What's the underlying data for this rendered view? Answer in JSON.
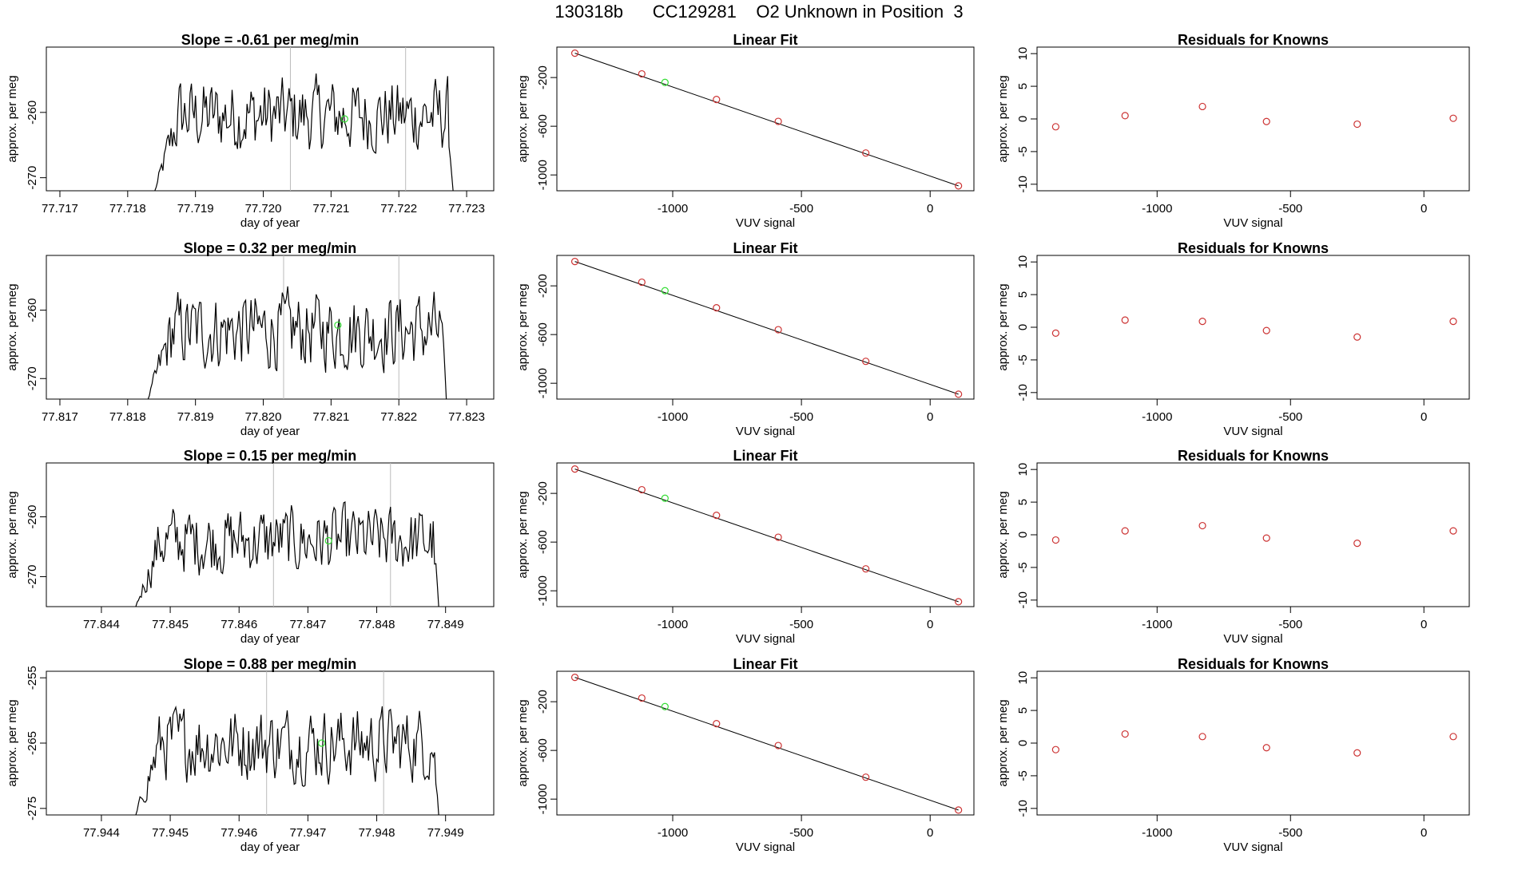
{
  "figure": {
    "title": "130318b      CC129281    O2 Unknown in Position  3"
  },
  "colors": {
    "trace": "#000000",
    "marker_known": "#cc3333",
    "marker_unknown": "#33dd33",
    "vline": "#bbbbbb"
  },
  "chart_data": [
    {
      "type": "line",
      "title": "Slope =  -0.61  per meg/min",
      "xlabel": "day of year",
      "ylabel": "approx. per meg",
      "xlim": [
        77.7168,
        77.7234
      ],
      "ylim": [
        -272,
        -250
      ],
      "xticks": [
        "77.717",
        "77.718",
        "77.719",
        "77.720",
        "77.721",
        "77.722",
        "77.723"
      ],
      "yticks": [
        "-260",
        "-270"
      ],
      "vlines": [
        77.7204,
        77.7221
      ],
      "trace_start": 77.7184,
      "trace_end": 77.7228,
      "trace_level": -260.5,
      "marker": {
        "x": 77.7212,
        "y": -261
      }
    },
    {
      "type": "scatter",
      "title": "Linear Fit",
      "xlabel": "VUV signal",
      "ylabel": "approx. per meg",
      "xlim": [
        -1450,
        170
      ],
      "ylim": [
        -1130,
        50
      ],
      "xticks": [
        "-1000",
        "-500",
        "0"
      ],
      "yticks": [
        "-200",
        "-600",
        "-1000"
      ],
      "points_x": [
        -1380,
        -1120,
        -830,
        -590,
        -250,
        110
      ],
      "points_y": [
        0,
        -170,
        -380,
        -560,
        -820,
        -1090
      ],
      "unknown": {
        "x": -1030,
        "y": -240
      },
      "fit": {
        "x": [
          -1380,
          110
        ],
        "y": [
          0,
          -1090
        ]
      }
    },
    {
      "type": "scatter",
      "title": "Residuals for Knowns",
      "xlabel": "VUV signal",
      "ylabel": "approx. per meg",
      "xlim": [
        -1450,
        170
      ],
      "ylim": [
        -11,
        11
      ],
      "xticks": [
        "-1000",
        "-500",
        "0"
      ],
      "yticks": [
        "10",
        "5",
        "0",
        "-5",
        "-10"
      ],
      "points_x": [
        -1380,
        -1120,
        -830,
        -590,
        -250,
        110
      ],
      "points_y": [
        -1.2,
        0.5,
        1.9,
        -0.4,
        -0.8,
        0.1
      ]
    },
    {
      "type": "line",
      "title": "Slope =  0.32  per meg/min",
      "xlabel": "day of year",
      "ylabel": "approx. per meg",
      "xlim": [
        77.8168,
        77.8234
      ],
      "ylim": [
        -273,
        -252
      ],
      "xticks": [
        "77.817",
        "77.818",
        "77.819",
        "77.820",
        "77.821",
        "77.822",
        "77.823"
      ],
      "yticks": [
        "-260",
        "-270"
      ],
      "vlines": [
        77.8203,
        77.822
      ],
      "trace_start": 77.8183,
      "trace_end": 77.8227,
      "trace_level": -263,
      "marker": {
        "x": 77.8211,
        "y": -262.2
      }
    },
    {
      "type": "scatter",
      "title": "Linear Fit",
      "xlabel": "VUV signal",
      "ylabel": "approx. per meg",
      "xlim": [
        -1450,
        170
      ],
      "ylim": [
        -1130,
        50
      ],
      "xticks": [
        "-1000",
        "-500",
        "0"
      ],
      "yticks": [
        "-200",
        "-600",
        "-1000"
      ],
      "points_x": [
        -1380,
        -1120,
        -830,
        -590,
        -250,
        110
      ],
      "points_y": [
        0,
        -170,
        -380,
        -560,
        -820,
        -1090
      ],
      "unknown": {
        "x": -1030,
        "y": -240
      },
      "fit": {
        "x": [
          -1380,
          110
        ],
        "y": [
          0,
          -1090
        ]
      }
    },
    {
      "type": "scatter",
      "title": "Residuals for Knowns",
      "xlabel": "VUV signal",
      "ylabel": "approx. per meg",
      "xlim": [
        -1450,
        170
      ],
      "ylim": [
        -11,
        11
      ],
      "xticks": [
        "-1000",
        "-500",
        "0"
      ],
      "yticks": [
        "10",
        "5",
        "0",
        "-5",
        "-10"
      ],
      "points_x": [
        -1380,
        -1120,
        -830,
        -590,
        -250,
        110
      ],
      "points_y": [
        -0.9,
        1.1,
        0.9,
        -0.5,
        -1.5,
        0.9
      ]
    },
    {
      "type": "line",
      "title": "Slope =  0.15  per meg/min",
      "xlabel": "day of year",
      "ylabel": "approx. per meg",
      "xlim": [
        77.8432,
        77.8497
      ],
      "ylim": [
        -275,
        -251
      ],
      "xticks": [
        "77.844",
        "77.845",
        "77.846",
        "77.847",
        "77.848",
        "77.849"
      ],
      "yticks": [
        "-260",
        "-270"
      ],
      "vlines": [
        77.8465,
        77.8482
      ],
      "trace_start": 77.8445,
      "trace_end": 77.8489,
      "trace_level": -264,
      "marker": {
        "x": 77.8473,
        "y": -264
      }
    },
    {
      "type": "scatter",
      "title": "Linear Fit",
      "xlabel": "VUV signal",
      "ylabel": "approx. per meg",
      "xlim": [
        -1450,
        170
      ],
      "ylim": [
        -1130,
        50
      ],
      "xticks": [
        "-1000",
        "-500",
        "0"
      ],
      "yticks": [
        "-200",
        "-600",
        "-1000"
      ],
      "points_x": [
        -1380,
        -1120,
        -830,
        -590,
        -250,
        110
      ],
      "points_y": [
        0,
        -170,
        -380,
        -560,
        -820,
        -1090
      ],
      "unknown": {
        "x": -1030,
        "y": -240
      },
      "fit": {
        "x": [
          -1380,
          110
        ],
        "y": [
          0,
          -1090
        ]
      }
    },
    {
      "type": "scatter",
      "title": "Residuals for Knowns",
      "xlabel": "VUV signal",
      "ylabel": "approx. per meg",
      "xlim": [
        -1450,
        170
      ],
      "ylim": [
        -11,
        11
      ],
      "xticks": [
        "-1000",
        "-500",
        "0"
      ],
      "yticks": [
        "10",
        "5",
        "0",
        "-5",
        "-10"
      ],
      "points_x": [
        -1380,
        -1120,
        -830,
        -590,
        -250,
        110
      ],
      "points_y": [
        -0.8,
        0.6,
        1.4,
        -0.5,
        -1.3,
        0.6
      ]
    },
    {
      "type": "line",
      "title": "Slope =  0.88  per meg/min",
      "xlabel": "day of year",
      "ylabel": "approx. per meg",
      "xlim": [
        77.9432,
        77.9497
      ],
      "ylim": [
        -276,
        -254
      ],
      "xticks": [
        "77.944",
        "77.945",
        "77.946",
        "77.947",
        "77.948",
        "77.949"
      ],
      "yticks": [
        "-255",
        "-265",
        "-275"
      ],
      "vlines": [
        77.9464,
        77.9481
      ],
      "trace_start": 77.9445,
      "trace_end": 77.9489,
      "trace_level": -265,
      "marker": {
        "x": 77.9472,
        "y": -265
      }
    },
    {
      "type": "scatter",
      "title": "Linear Fit",
      "xlabel": "VUV signal",
      "ylabel": "approx. per meg",
      "xlim": [
        -1450,
        170
      ],
      "ylim": [
        -1130,
        50
      ],
      "xticks": [
        "-1000",
        "-500",
        "0"
      ],
      "yticks": [
        "-200",
        "-600",
        "-1000"
      ],
      "points_x": [
        -1380,
        -1120,
        -830,
        -590,
        -250,
        110
      ],
      "points_y": [
        0,
        -170,
        -380,
        -560,
        -820,
        -1090
      ],
      "unknown": {
        "x": -1030,
        "y": -240
      },
      "fit": {
        "x": [
          -1380,
          110
        ],
        "y": [
          0,
          -1090
        ]
      }
    },
    {
      "type": "scatter",
      "title": "Residuals for Knowns",
      "xlabel": "VUV signal",
      "ylabel": "approx. per meg",
      "xlim": [
        -1450,
        170
      ],
      "ylim": [
        -11,
        11
      ],
      "xticks": [
        "-1000",
        "-500",
        "0"
      ],
      "yticks": [
        "10",
        "5",
        "0",
        "-5",
        "-10"
      ],
      "points_x": [
        -1380,
        -1120,
        -830,
        -590,
        -250,
        110
      ],
      "points_y": [
        -1.0,
        1.4,
        1.0,
        -0.7,
        -1.5,
        1.0
      ]
    }
  ]
}
